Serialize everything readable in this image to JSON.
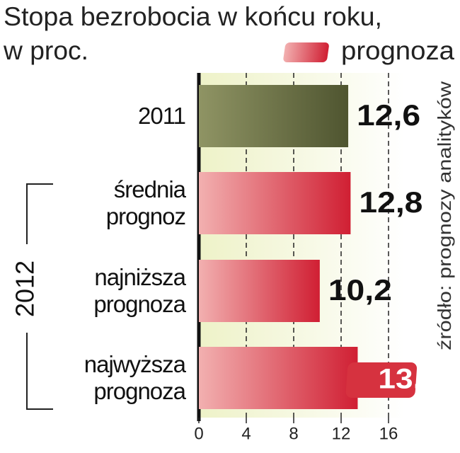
{
  "chart_data": {
    "type": "bar",
    "orientation": "horizontal",
    "title": "Stopa bezrobocia w końcu roku,",
    "subtitle": "w proc.",
    "legend_label": "prognoza",
    "group_label": "2012",
    "source": "źródło: prognozy analityków",
    "categories": [
      "2011",
      "średnia prognoz",
      "najniższa prognoza",
      "najwyższa prognoza"
    ],
    "values": [
      12.6,
      12.8,
      10.2,
      13.4
    ],
    "value_labels": [
      "12,6",
      "12,8",
      "10,2",
      "13,4"
    ],
    "colors": [
      "#6b7142",
      "#d6323f",
      "#d6323f",
      "#d6323f"
    ],
    "xlim": [
      0,
      16
    ],
    "xticks": [
      0,
      4,
      8,
      12,
      16
    ],
    "grid": true
  }
}
